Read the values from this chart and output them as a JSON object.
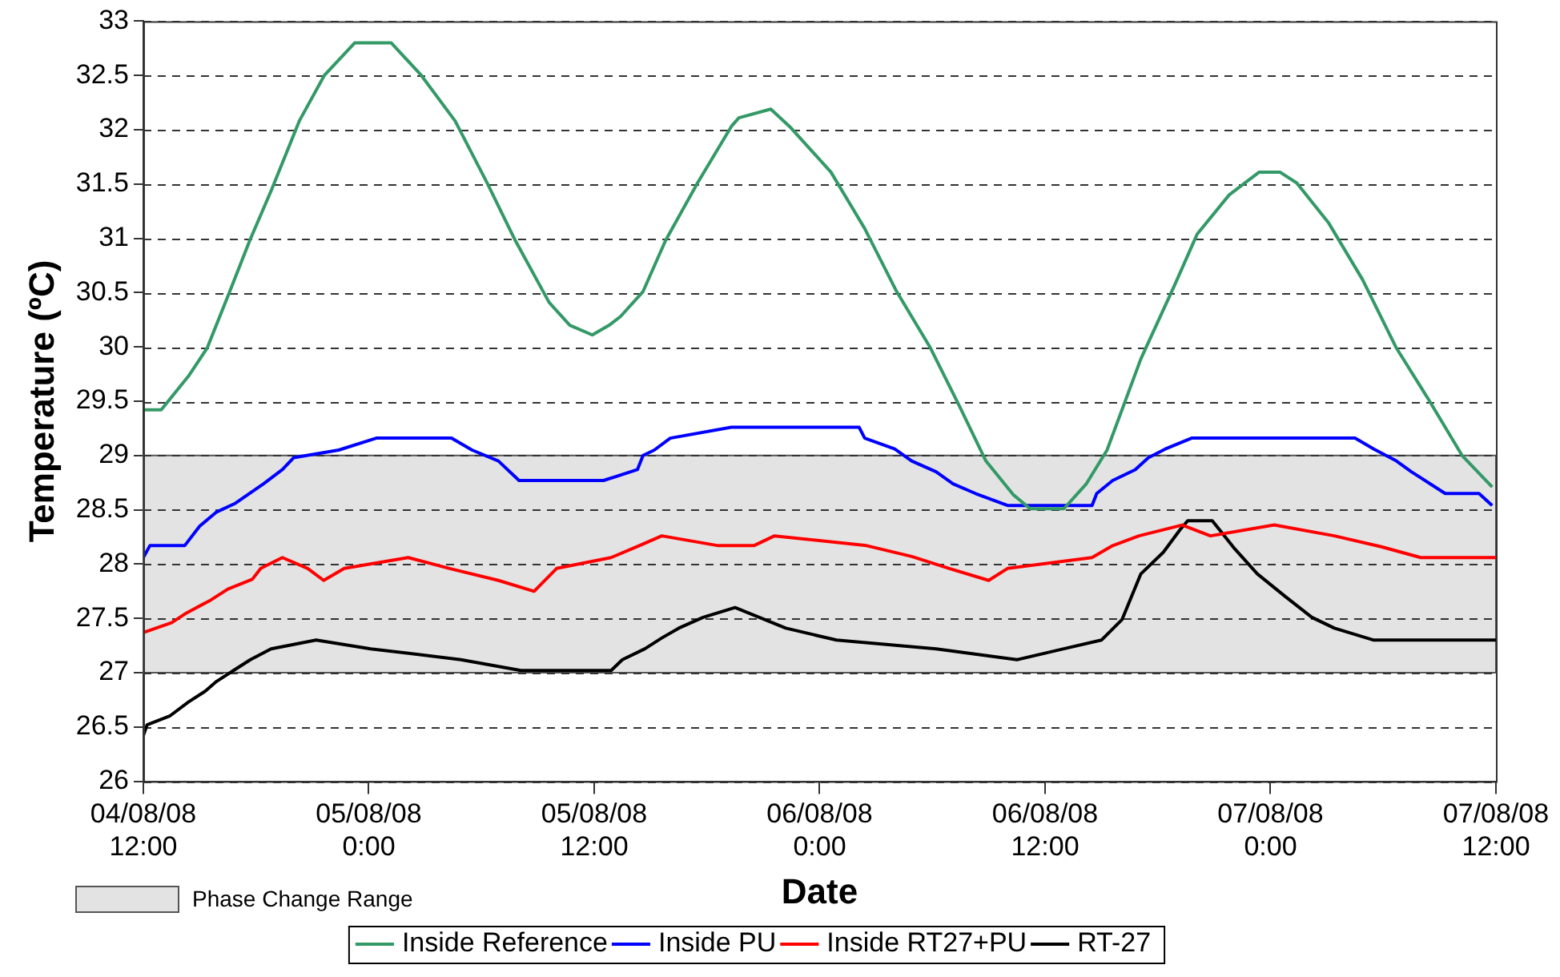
{
  "chart_data": {
    "type": "line",
    "xlabel": "Date",
    "ylabel": "Temperature (ºC)",
    "xlim": [
      "--08-04T12:00",
      "--08-07T12:00"
    ],
    "xticks": [
      {
        "value": "--08-04T12:00",
        "label": "04/08/08 12:00"
      },
      {
        "value": "--08-05T00:00",
        "label": "05/08/08 0:00"
      },
      {
        "value": "--08-05T12:00",
        "label": "05/08/08 12:00"
      },
      {
        "value": "--08-06T00:00",
        "label": "06/08/08 0:00"
      },
      {
        "value": "--08-06T12:00",
        "label": "06/08/08 12:00"
      },
      {
        "value": "--08-07T00:00",
        "label": "07/08/08 0:00"
      },
      {
        "value": "--08-07T12:00",
        "label": "07/08/08 12:00"
      }
    ],
    "ylim": [
      26,
      33
    ],
    "yticks": [
      26,
      26.5,
      27,
      27.5,
      28,
      28.5,
      29,
      29.5,
      30,
      30.5,
      31,
      31.5,
      32,
      32.5,
      33
    ],
    "grid": "y",
    "legend": "bottom",
    "marker": "none",
    "line_style": "solid",
    "bands": [
      {
        "axis": "y",
        "from": 27,
        "to": 29,
        "label": "Phase Change Range",
        "color": "#e3e3e3"
      }
    ],
    "series": [
      {
        "name": "Inside Reference",
        "color": "#339966",
        "x": [
          "--08-04T12:00",
          "--08-04T12:57",
          "--08-04T14:24",
          "--08-04T15:24",
          "--08-04T16:36",
          "--08-04T17:40",
          "--08-04T18:50",
          "--08-04T20:18",
          "--08-04T21:38",
          "--08-04T23:15",
          "--08-05T01:12",
          "--08-05T02:48",
          "--08-05T04:36",
          "--08-05T06:18",
          "--08-05T07:48",
          "--08-05T09:36",
          "--08-05T10:42",
          "--08-05T11:54",
          "--08-05T12:48",
          "--08-05T13:24",
          "--08-05T14:36",
          "--08-05T15:48",
          "--08-05T17:30",
          "--08-05T19:18",
          "--08-05T19:42",
          "--08-05T21:24",
          "--08-05T22:24",
          "--08-06T00:36",
          "--08-06T02:24",
          "--08-06T04:06",
          "--08-06T05:54",
          "--08-06T07:24",
          "--08-06T08:51",
          "--08-06T10:18",
          "--08-06T11:12",
          "--08-06T13:00",
          "--08-06T14:12",
          "--08-06T15:18",
          "--08-06T17:06",
          "--08-06T18:54",
          "--08-06T20:06",
          "--08-06T21:48",
          "--08-06T23:24",
          "--08-07T00:30",
          "--08-07T01:24",
          "--08-07T03:06",
          "--08-07T04:54",
          "--08-07T06:42",
          "--08-07T08:24",
          "--08-07T10:12",
          "--08-07T11:48"
        ],
        "values": [
          29.42,
          29.42,
          29.73,
          29.99,
          30.51,
          30.98,
          31.45,
          32.08,
          32.5,
          32.8,
          32.8,
          32.5,
          32.08,
          31.51,
          30.98,
          30.41,
          30.2,
          30.11,
          30.2,
          30.28,
          30.51,
          30.98,
          31.51,
          32.03,
          32.11,
          32.19,
          32.03,
          31.61,
          31.09,
          30.51,
          29.99,
          29.47,
          28.95,
          28.64,
          28.51,
          28.51,
          28.74,
          29.05,
          29.89,
          30.57,
          31.04,
          31.4,
          31.61,
          31.61,
          31.51,
          31.14,
          30.62,
          29.99,
          29.52,
          29.0,
          28.71
        ]
      },
      {
        "name": "Inside PU",
        "color": "#0000ff",
        "x": [
          "--08-04T12:00",
          "--08-04T12:21",
          "--08-04T14:12",
          "--08-04T15:00",
          "--08-04T15:54",
          "--08-04T16:54",
          "--08-04T18:24",
          "--08-04T19:24",
          "--08-04T20:00",
          "--08-04T22:24",
          "--08-05T00:24",
          "--08-05T04:24",
          "--08-05T05:30",
          "--08-05T06:54",
          "--08-05T08:00",
          "--08-05T12:30",
          "--08-05T14:18",
          "--08-05T14:36",
          "--08-05T15:12",
          "--08-05T16:03",
          "--08-05T19:18",
          "--08-06T02:06",
          "--08-06T02:24",
          "--08-06T04:00",
          "--08-06T04:54",
          "--08-06T06:12",
          "--08-06T07:06",
          "--08-06T08:18",
          "--08-06T10:00",
          "--08-06T14:30",
          "--08-06T14:45",
          "--08-06T15:36",
          "--08-06T16:48",
          "--08-06T17:30",
          "--08-06T18:24",
          "--08-06T19:48",
          "--08-07T04:30",
          "--08-07T05:30",
          "--08-07T06:42",
          "--08-07T07:30",
          "--08-07T09:18",
          "--08-07T11:06",
          "--08-07T11:48"
        ],
        "values": [
          28.06,
          28.17,
          28.17,
          28.35,
          28.48,
          28.56,
          28.74,
          28.87,
          28.98,
          29.05,
          29.16,
          29.16,
          29.05,
          28.95,
          28.77,
          28.77,
          28.87,
          29.0,
          29.05,
          29.16,
          29.26,
          29.26,
          29.16,
          29.06,
          28.95,
          28.85,
          28.74,
          28.65,
          28.54,
          28.54,
          28.65,
          28.77,
          28.87,
          28.98,
          29.06,
          29.16,
          29.16,
          29.06,
          28.95,
          28.85,
          28.65,
          28.65,
          28.54
        ]
      },
      {
        "name": "Inside RT27+PU",
        "color": "#ff0000",
        "x": [
          "--08-04T12:00",
          "--08-04T13:30",
          "--08-04T14:18",
          "--08-04T15:36",
          "--08-04T16:30",
          "--08-04T17:48",
          "--08-04T18:15",
          "--08-04T19:24",
          "--08-04T20:45",
          "--08-04T21:36",
          "--08-04T22:42",
          "--08-05T02:06",
          "--08-05T04:18",
          "--08-05T06:54",
          "--08-05T08:48",
          "--08-05T10:00",
          "--08-05T12:54",
          "--08-05T14:24",
          "--08-05T15:36",
          "--08-05T18:36",
          "--08-05T20:30",
          "--08-05T21:36",
          "--08-06T02:30",
          "--08-06T04:54",
          "--08-06T06:54",
          "--08-06T09:00",
          "--08-06T10:00",
          "--08-06T14:30",
          "--08-06T15:36",
          "--08-06T17:00",
          "--08-06T19:18",
          "--08-06T20:48",
          "--08-07T00:12",
          "--08-07T03:24",
          "--08-07T05:54",
          "--08-07T08:00",
          "--08-07T12:00"
        ],
        "values": [
          27.37,
          27.46,
          27.55,
          27.67,
          27.77,
          27.86,
          27.96,
          28.06,
          27.96,
          27.85,
          27.96,
          28.06,
          27.96,
          27.85,
          27.75,
          27.96,
          28.06,
          28.17,
          28.26,
          28.17,
          28.17,
          28.26,
          28.17,
          28.07,
          27.96,
          27.85,
          27.96,
          28.06,
          28.17,
          28.26,
          28.36,
          28.26,
          28.36,
          28.26,
          28.16,
          28.06,
          28.06
        ]
      },
      {
        "name": "RT-27",
        "color": "#000000",
        "x": [
          "--08-04T12:00",
          "--08-04T12:12",
          "--08-04T13:24",
          "--08-04T14:24",
          "--08-04T15:18",
          "--08-04T15:54",
          "--08-04T16:48",
          "--08-04T17:42",
          "--08-04T18:48",
          "--08-04T21:12",
          "--08-05T00:06",
          "--08-05T04:54",
          "--08-05T08:06",
          "--08-05T12:54",
          "--08-05T13:30",
          "--08-05T14:42",
          "--08-05T15:36",
          "--08-05T16:30",
          "--08-05T17:48",
          "--08-05T19:30",
          "--08-05T22:12",
          "--08-06T00:54",
          "--08-06T06:12",
          "--08-06T10:30",
          "--08-06T13:00",
          "--08-06T15:00",
          "--08-06T16:06",
          "--08-06T17:06",
          "--08-06T18:18",
          "--08-06T19:12",
          "--08-06T19:36",
          "--08-06T20:54",
          "--08-06T22:06",
          "--08-06T23:18",
          "--08-07T00:48",
          "--08-07T02:12",
          "--08-07T03:24",
          "--08-07T05:30",
          "--08-07T12:00"
        ],
        "values": [
          26.42,
          26.52,
          26.6,
          26.73,
          26.83,
          26.92,
          27.02,
          27.12,
          27.22,
          27.3,
          27.22,
          27.12,
          27.02,
          27.02,
          27.12,
          27.22,
          27.32,
          27.41,
          27.51,
          27.6,
          27.41,
          27.3,
          27.22,
          27.12,
          27.22,
          27.3,
          27.49,
          27.91,
          28.11,
          28.32,
          28.4,
          28.4,
          28.14,
          27.91,
          27.7,
          27.51,
          27.41,
          27.3,
          27.3
        ]
      }
    ]
  }
}
